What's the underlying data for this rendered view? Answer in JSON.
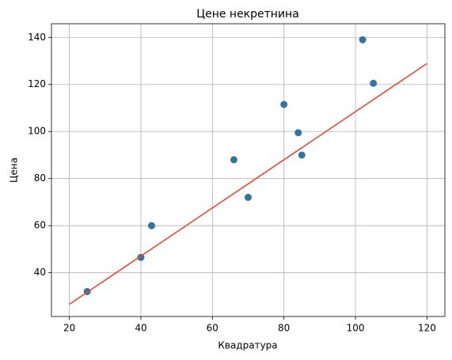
{
  "chart_data": {
    "type": "scatter",
    "title": "Цене некретнина",
    "x_label": "Квадратура",
    "y_label": "Цена",
    "series": [
      {
        "type": "scatter",
        "color": "#3274a1",
        "x": [
          25,
          40,
          43,
          66,
          70,
          80,
          84,
          85,
          102,
          105
        ],
        "values": [
          32,
          46.5,
          60,
          88,
          72,
          111.5,
          99.5,
          90,
          139,
          120.5
        ]
      },
      {
        "type": "line",
        "color": "#e24a33",
        "x": [
          20,
          120
        ],
        "values": [
          26.6,
          128.9
        ]
      }
    ],
    "xlim": [
      15,
      125
    ],
    "ylim": [
      21.4,
      145.8
    ],
    "xticks": [
      20,
      40,
      60,
      80,
      100,
      120
    ],
    "yticks": [
      40,
      60,
      80,
      100,
      120,
      140
    ],
    "grid": true
  }
}
